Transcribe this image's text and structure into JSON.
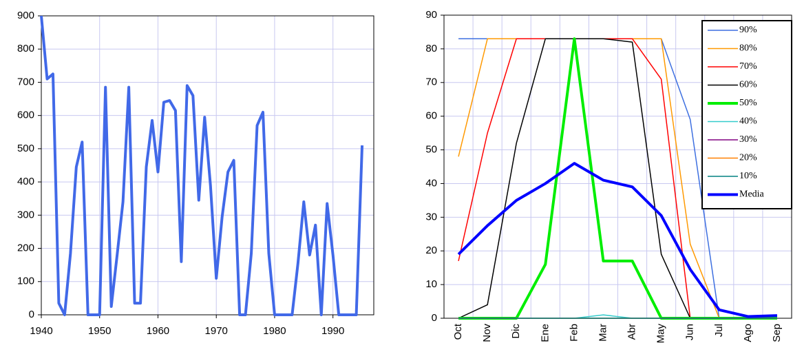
{
  "chart_data": [
    {
      "type": "line",
      "color": "#4169e8",
      "x": [
        1940,
        1941,
        1942,
        1943,
        1944,
        1945,
        1946,
        1947,
        1948,
        1949,
        1950,
        1951,
        1952,
        1953,
        1954,
        1955,
        1956,
        1957,
        1958,
        1959,
        1960,
        1961,
        1962,
        1963,
        1964,
        1965,
        1966,
        1967,
        1968,
        1969,
        1970,
        1971,
        1972,
        1973,
        1974,
        1975,
        1976,
        1977,
        1978,
        1979,
        1980,
        1981,
        1982,
        1983,
        1984,
        1985,
        1986,
        1987,
        1988,
        1989,
        1990,
        1991,
        1992,
        1993,
        1994,
        1995
      ],
      "values": [
        900,
        710,
        725,
        35,
        0,
        185,
        445,
        520,
        0,
        0,
        0,
        685,
        25,
        180,
        340,
        685,
        35,
        35,
        445,
        585,
        430,
        640,
        645,
        615,
        160,
        690,
        660,
        345,
        595,
        390,
        110,
        295,
        430,
        465,
        0,
        0,
        185,
        570,
        610,
        185,
        0,
        0,
        0,
        0,
        155,
        340,
        180,
        270,
        0,
        335,
        180,
        0,
        0,
        0,
        0,
        510
      ],
      "xlim": [
        1940,
        1997
      ],
      "xticks": [
        1940,
        1950,
        1960,
        1970,
        1980,
        1990
      ],
      "ylim": [
        0,
        900
      ],
      "yticks": [
        0,
        100,
        200,
        300,
        400,
        500,
        600,
        700,
        800,
        900
      ],
      "grid": true
    },
    {
      "type": "line",
      "categories": [
        "Oct",
        "Nov",
        "Dic",
        "Ene",
        "Feb",
        "Mar",
        "Abr",
        "May",
        "Jun",
        "Jul",
        "Ago",
        "Sep"
      ],
      "series": [
        {
          "name": "90%",
          "color": "#3d6fe0",
          "width": 1.5,
          "values": [
            83,
            83,
            83,
            83,
            83,
            83,
            83,
            83,
            59,
            0,
            0,
            0
          ]
        },
        {
          "name": "80%",
          "color": "#ff9900",
          "width": 1.5,
          "values": [
            48,
            83,
            83,
            83,
            83,
            83,
            83,
            83,
            22,
            0,
            0,
            0
          ]
        },
        {
          "name": "70%",
          "color": "#ff0000",
          "width": 1.5,
          "values": [
            17,
            55,
            83,
            83,
            83,
            83,
            83,
            71,
            0,
            0,
            0,
            0
          ]
        },
        {
          "name": "60%",
          "color": "#000000",
          "width": 1.5,
          "values": [
            0,
            4,
            52,
            83,
            83,
            83,
            82,
            19,
            0,
            0,
            0,
            0
          ]
        },
        {
          "name": "50%",
          "color": "#00ee00",
          "width": 4,
          "values": [
            0,
            0,
            0,
            16,
            83,
            17,
            17,
            0,
            0,
            0,
            0,
            0
          ]
        },
        {
          "name": "40%",
          "color": "#33cccc",
          "width": 1.5,
          "values": [
            0,
            0,
            0,
            0,
            0,
            1,
            0,
            0,
            0,
            0,
            0,
            0
          ]
        },
        {
          "name": "30%",
          "color": "#800080",
          "width": 1.5,
          "values": [
            0,
            0,
            0,
            0,
            0,
            0,
            0,
            0,
            0,
            0,
            0,
            0
          ]
        },
        {
          "name": "20%",
          "color": "#ff8000",
          "width": 1.5,
          "values": [
            0,
            0,
            0,
            0,
            0,
            0,
            0,
            0,
            0,
            0,
            0,
            0
          ]
        },
        {
          "name": "10%",
          "color": "#008080",
          "width": 1.5,
          "values": [
            0,
            0,
            0,
            0,
            0,
            0,
            0,
            0,
            0,
            0,
            0,
            0
          ]
        },
        {
          "name": "Media",
          "color": "#0000ff",
          "width": 4,
          "values": [
            19,
            27.5,
            35,
            40,
            46,
            41,
            39,
            30.5,
            14.5,
            2.5,
            0.5,
            0.8
          ]
        }
      ],
      "ylim": [
        0,
        90
      ],
      "yticks": [
        0,
        10,
        20,
        30,
        40,
        50,
        60,
        70,
        80,
        90
      ],
      "grid": true,
      "legend": "upper right"
    }
  ]
}
